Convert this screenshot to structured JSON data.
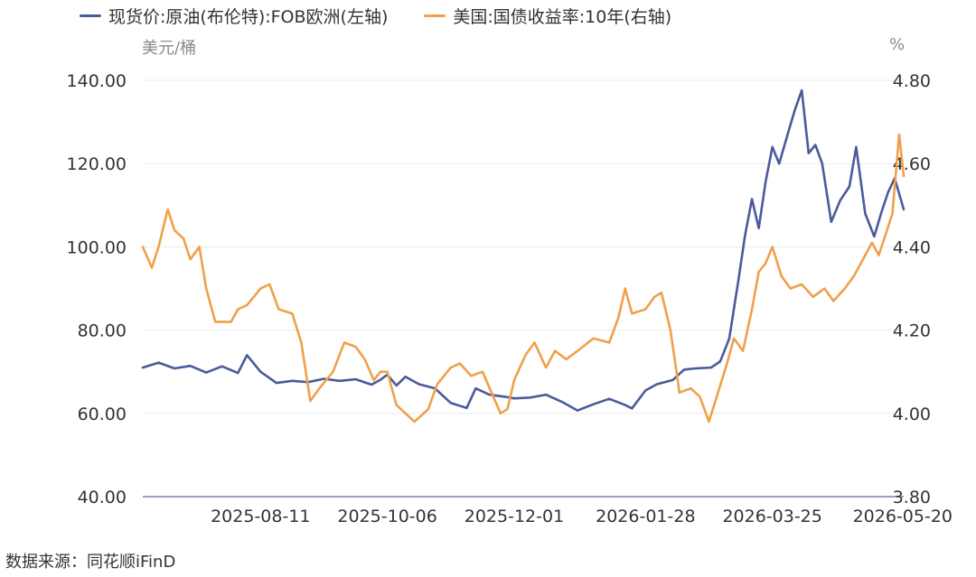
{
  "chart_data": {
    "type": "line",
    "left_unit": "美元/桶",
    "right_unit": "%",
    "source": "数据来源：同花顺iFinD",
    "x_tick_labels": [
      "2025-08-11",
      "2025-10-06",
      "2025-12-01",
      "2026-01-28",
      "2026-03-25",
      "2026-05-20"
    ],
    "x_start": "2025-06-20",
    "x_end": "2026-05-22",
    "y_left": {
      "min": 40,
      "max": 140,
      "ticks": [
        "40.00",
        "60.00",
        "80.00",
        "100.00",
        "120.00",
        "140.00"
      ]
    },
    "y_right": {
      "min": 3.8,
      "max": 4.8,
      "ticks": [
        "3.80",
        "4.00",
        "4.20",
        "4.40",
        "4.60",
        "4.80"
      ]
    },
    "grid": "horizontal",
    "legend_position": "top",
    "series": [
      {
        "name": "现货价:原油(布伦特):FOB欧洲(左轴)",
        "axis": "left",
        "color": "#4a5a9c",
        "points": [
          [
            "2025-06-20",
            71.0
          ],
          [
            "2025-06-27",
            72.2
          ],
          [
            "2025-07-04",
            70.8
          ],
          [
            "2025-07-11",
            71.4
          ],
          [
            "2025-07-18",
            69.8
          ],
          [
            "2025-07-25",
            71.3
          ],
          [
            "2025-08-01",
            69.7
          ],
          [
            "2025-08-05",
            74.0
          ],
          [
            "2025-08-11",
            70.0
          ],
          [
            "2025-08-18",
            67.3
          ],
          [
            "2025-08-25",
            67.8
          ],
          [
            "2025-09-01",
            67.5
          ],
          [
            "2025-09-08",
            68.3
          ],
          [
            "2025-09-15",
            67.8
          ],
          [
            "2025-09-22",
            68.2
          ],
          [
            "2025-09-29",
            66.9
          ],
          [
            "2025-10-03",
            68.1
          ],
          [
            "2025-10-06",
            69.3
          ],
          [
            "2025-10-10",
            66.7
          ],
          [
            "2025-10-14",
            68.8
          ],
          [
            "2025-10-20",
            67.0
          ],
          [
            "2025-10-27",
            66.0
          ],
          [
            "2025-11-03",
            62.5
          ],
          [
            "2025-11-10",
            61.3
          ],
          [
            "2025-11-14",
            66.0
          ],
          [
            "2025-11-20",
            64.5
          ],
          [
            "2025-11-27",
            64.0
          ],
          [
            "2025-12-01",
            63.6
          ],
          [
            "2025-12-08",
            63.8
          ],
          [
            "2025-12-15",
            64.5
          ],
          [
            "2025-12-22",
            62.8
          ],
          [
            "2025-12-29",
            60.7
          ],
          [
            "2026-01-05",
            62.2
          ],
          [
            "2026-01-12",
            63.5
          ],
          [
            "2026-01-19",
            62.0
          ],
          [
            "2026-01-22",
            61.2
          ],
          [
            "2026-01-28",
            65.5
          ],
          [
            "2026-02-02",
            67.0
          ],
          [
            "2026-02-09",
            68.0
          ],
          [
            "2026-02-14",
            70.5
          ],
          [
            "2026-02-19",
            70.8
          ],
          [
            "2026-02-26",
            71.0
          ],
          [
            "2026-03-02",
            72.5
          ],
          [
            "2026-03-06",
            78.0
          ],
          [
            "2026-03-10",
            92.0
          ],
          [
            "2026-03-13",
            103.0
          ],
          [
            "2026-03-16",
            111.5
          ],
          [
            "2026-03-19",
            104.5
          ],
          [
            "2026-03-22",
            115.5
          ],
          [
            "2026-03-25",
            124.0
          ],
          [
            "2026-03-28",
            120.0
          ],
          [
            "2026-04-01",
            127.5
          ],
          [
            "2026-04-04",
            133.0
          ],
          [
            "2026-04-07",
            137.6
          ],
          [
            "2026-04-10",
            122.5
          ],
          [
            "2026-04-13",
            124.5
          ],
          [
            "2026-04-16",
            120.0
          ],
          [
            "2026-04-20",
            106.0
          ],
          [
            "2026-04-24",
            111.2
          ],
          [
            "2026-04-28",
            114.5
          ],
          [
            "2026-05-01",
            124.0
          ],
          [
            "2026-05-05",
            108.0
          ],
          [
            "2026-05-09",
            102.5
          ],
          [
            "2026-05-12",
            108.0
          ],
          [
            "2026-05-15",
            113.0
          ],
          [
            "2026-05-18",
            116.5
          ],
          [
            "2026-05-22",
            109.0
          ]
        ]
      },
      {
        "name": "美国:国债收益率:10年(右轴)",
        "axis": "right",
        "color": "#f0a04b",
        "points": [
          [
            "2025-06-20",
            4.4
          ],
          [
            "2025-06-24",
            4.35
          ],
          [
            "2025-06-27",
            4.4
          ],
          [
            "2025-07-01",
            4.49
          ],
          [
            "2025-07-04",
            4.44
          ],
          [
            "2025-07-08",
            4.42
          ],
          [
            "2025-07-11",
            4.37
          ],
          [
            "2025-07-15",
            4.4
          ],
          [
            "2025-07-18",
            4.3
          ],
          [
            "2025-07-22",
            4.22
          ],
          [
            "2025-07-29",
            4.22
          ],
          [
            "2025-08-01",
            4.25
          ],
          [
            "2025-08-05",
            4.26
          ],
          [
            "2025-08-11",
            4.3
          ],
          [
            "2025-08-15",
            4.31
          ],
          [
            "2025-08-19",
            4.25
          ],
          [
            "2025-08-25",
            4.24
          ],
          [
            "2025-08-29",
            4.17
          ],
          [
            "2025-09-02",
            4.03
          ],
          [
            "2025-09-06",
            4.06
          ],
          [
            "2025-09-12",
            4.1
          ],
          [
            "2025-09-17",
            4.17
          ],
          [
            "2025-09-22",
            4.16
          ],
          [
            "2025-09-26",
            4.13
          ],
          [
            "2025-09-30",
            4.08
          ],
          [
            "2025-10-03",
            4.1
          ],
          [
            "2025-10-06",
            4.1
          ],
          [
            "2025-10-10",
            4.02
          ],
          [
            "2025-10-14",
            4.0
          ],
          [
            "2025-10-18",
            3.98
          ],
          [
            "2025-10-24",
            4.01
          ],
          [
            "2025-10-28",
            4.07
          ],
          [
            "2025-11-03",
            4.11
          ],
          [
            "2025-11-07",
            4.12
          ],
          [
            "2025-11-12",
            4.09
          ],
          [
            "2025-11-17",
            4.1
          ],
          [
            "2025-11-21",
            4.05
          ],
          [
            "2025-11-25",
            4.0
          ],
          [
            "2025-11-28",
            4.01
          ],
          [
            "2025-12-01",
            4.08
          ],
          [
            "2025-12-06",
            4.14
          ],
          [
            "2025-12-10",
            4.17
          ],
          [
            "2025-12-15",
            4.11
          ],
          [
            "2025-12-19",
            4.15
          ],
          [
            "2025-12-24",
            4.13
          ],
          [
            "2025-12-29",
            4.15
          ],
          [
            "2026-01-05",
            4.18
          ],
          [
            "2026-01-12",
            4.17
          ],
          [
            "2026-01-16",
            4.23
          ],
          [
            "2026-01-19",
            4.3
          ],
          [
            "2026-01-22",
            4.24
          ],
          [
            "2026-01-28",
            4.25
          ],
          [
            "2026-02-01",
            4.28
          ],
          [
            "2026-02-04",
            4.29
          ],
          [
            "2026-02-08",
            4.2
          ],
          [
            "2026-02-12",
            4.05
          ],
          [
            "2026-02-17",
            4.06
          ],
          [
            "2026-02-21",
            4.04
          ],
          [
            "2026-02-25",
            3.98
          ],
          [
            "2026-03-01",
            4.05
          ],
          [
            "2026-03-05",
            4.12
          ],
          [
            "2026-03-08",
            4.18
          ],
          [
            "2026-03-12",
            4.15
          ],
          [
            "2026-03-16",
            4.25
          ],
          [
            "2026-03-19",
            4.34
          ],
          [
            "2026-03-22",
            4.36
          ],
          [
            "2026-03-25",
            4.4
          ],
          [
            "2026-03-29",
            4.33
          ],
          [
            "2026-04-02",
            4.3
          ],
          [
            "2026-04-07",
            4.31
          ],
          [
            "2026-04-12",
            4.28
          ],
          [
            "2026-04-17",
            4.3
          ],
          [
            "2026-04-21",
            4.27
          ],
          [
            "2026-04-26",
            4.3
          ],
          [
            "2026-04-30",
            4.33
          ],
          [
            "2026-05-04",
            4.37
          ],
          [
            "2026-05-08",
            4.41
          ],
          [
            "2026-05-11",
            4.38
          ],
          [
            "2026-05-14",
            4.43
          ],
          [
            "2026-05-17",
            4.48
          ],
          [
            "2026-05-20",
            4.67
          ],
          [
            "2026-05-22",
            4.57
          ]
        ]
      }
    ]
  }
}
